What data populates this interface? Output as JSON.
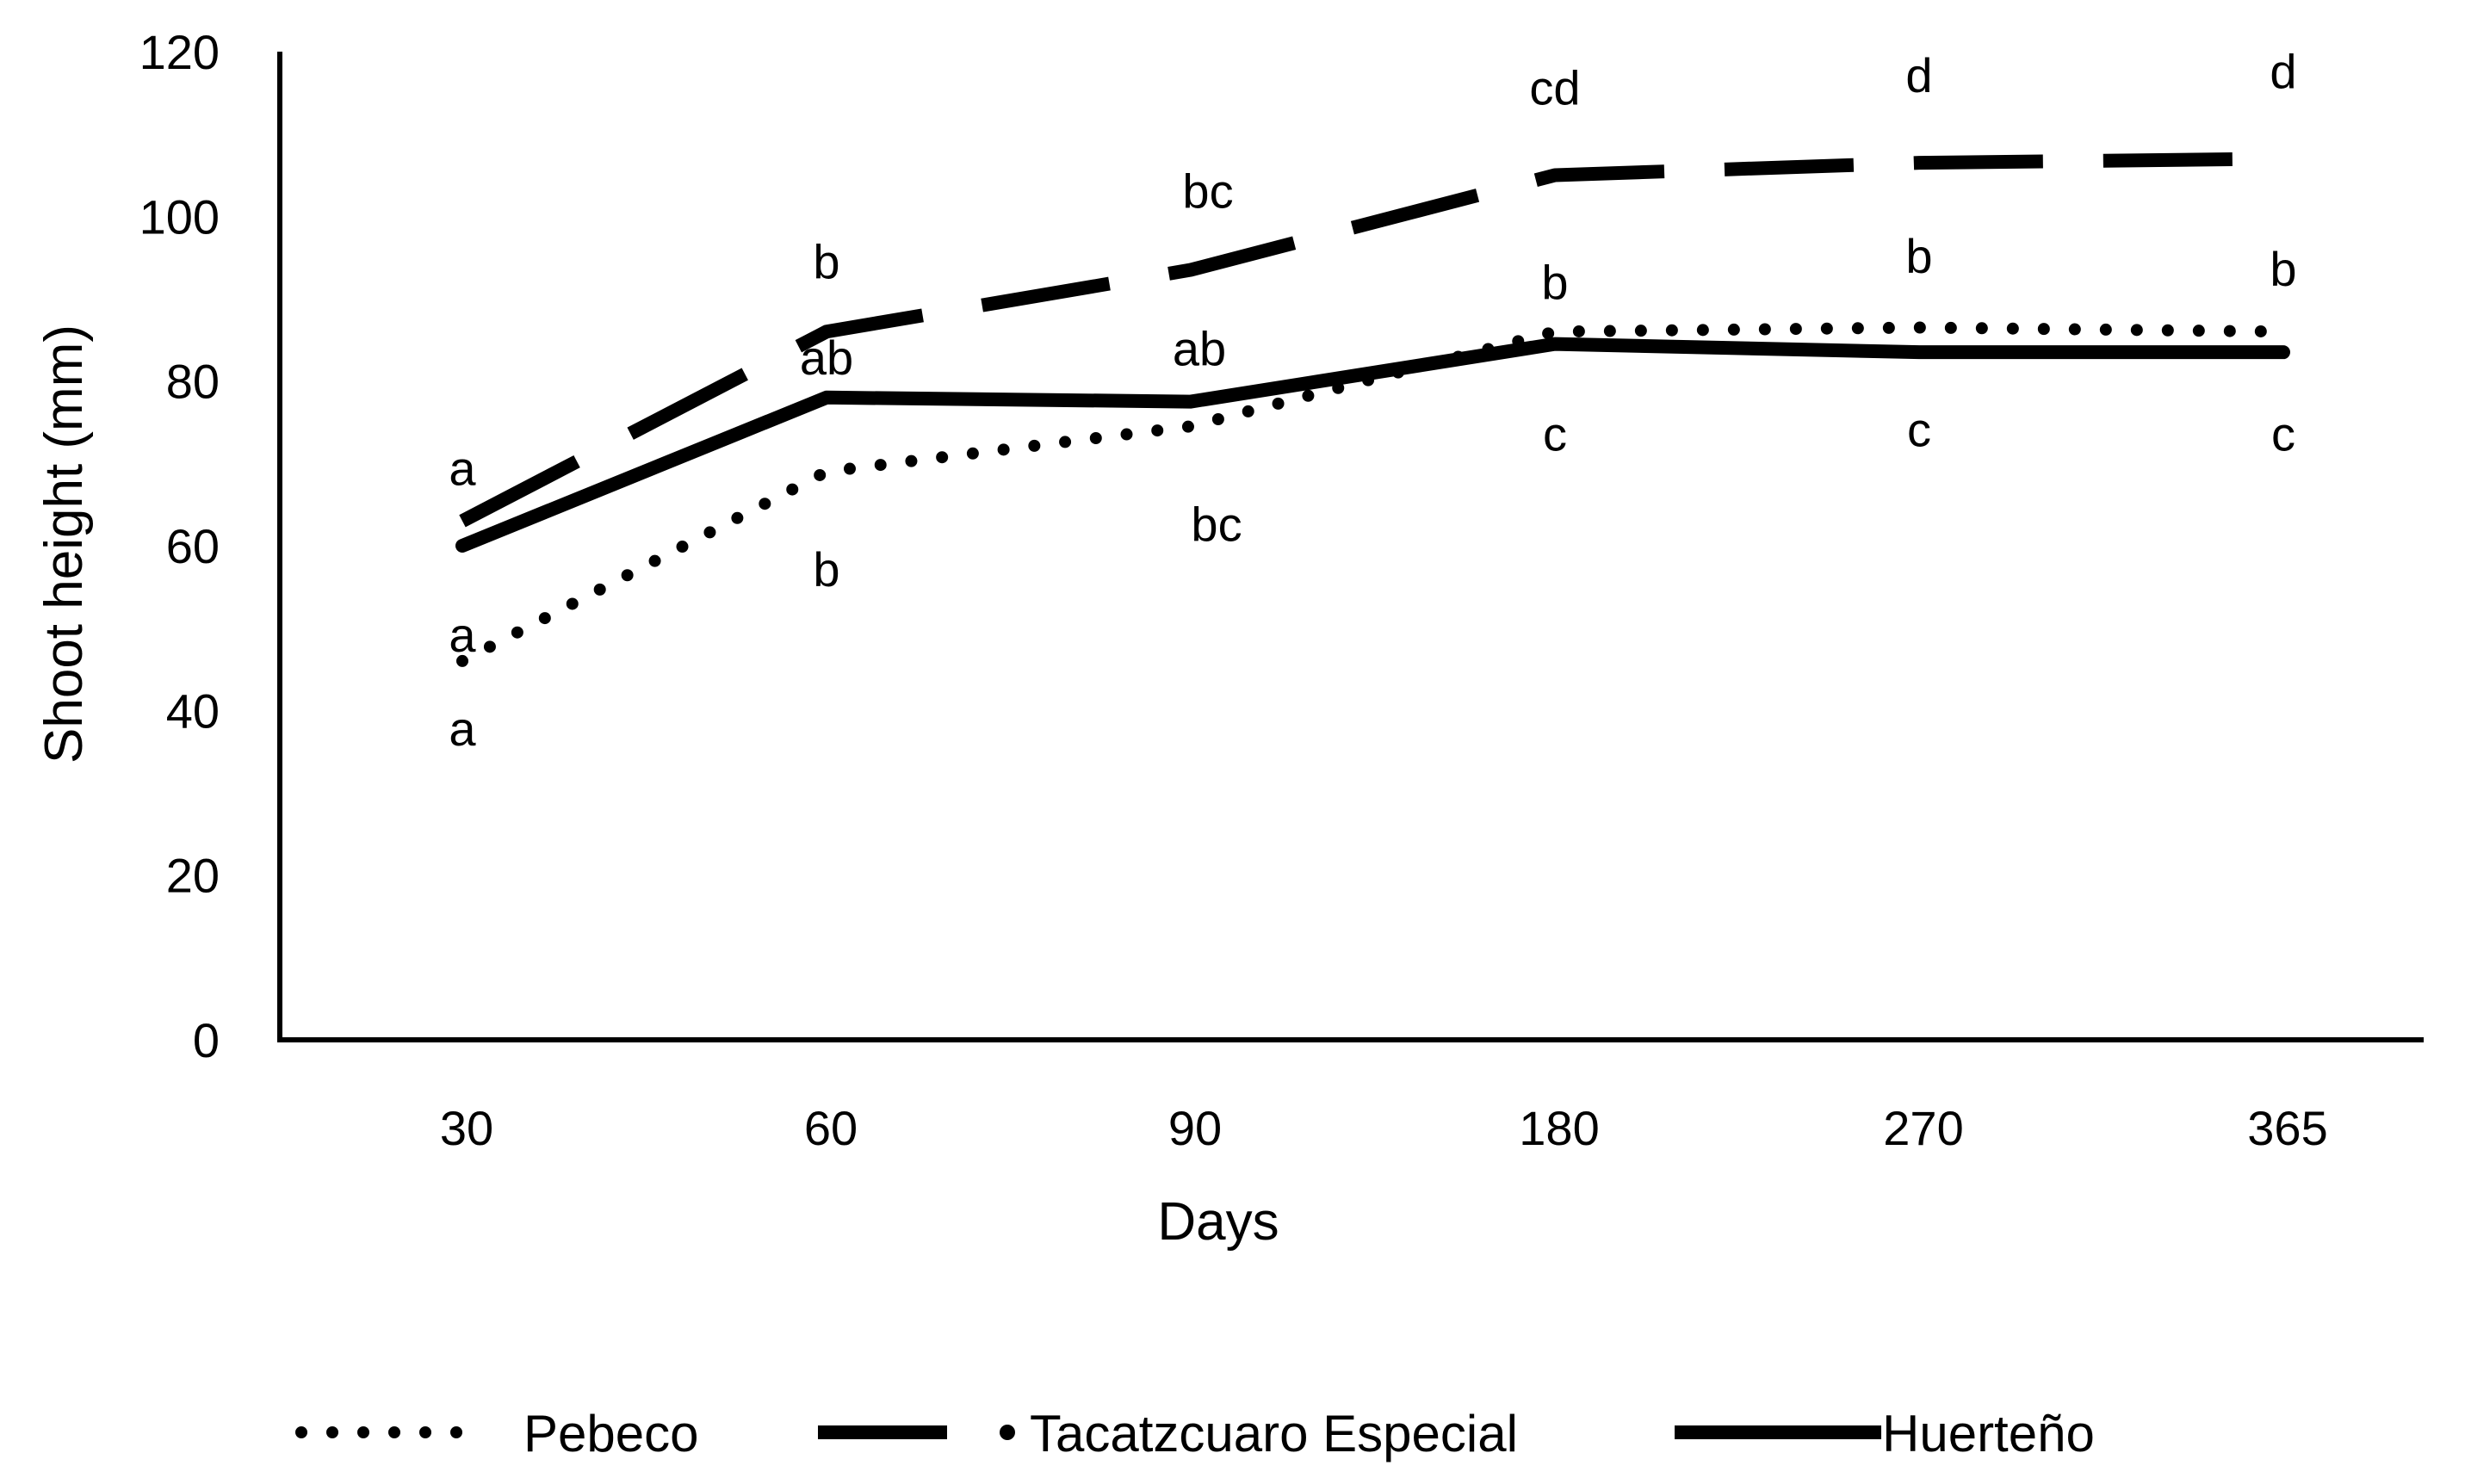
{
  "chart_data": {
    "type": "line",
    "title": "",
    "xlabel": "Days",
    "ylabel": "Shoot height (mm)",
    "categories": [
      "30",
      "60",
      "90",
      "180",
      "270",
      "365"
    ],
    "ylim": [
      0,
      120
    ],
    "yticks": [
      "0",
      "20",
      "40",
      "60",
      "80",
      "100",
      "120"
    ],
    "grid": false,
    "legend_position": "bottom",
    "series": [
      {
        "name": "Pebeco",
        "style": "dotted",
        "values": [
          46,
          69,
          74.5,
          86,
          86.5,
          86
        ],
        "labels": [
          "a",
          "b",
          "bc",
          "c",
          "c",
          "c"
        ]
      },
      {
        "name": "Tacatzcuaro Especial",
        "style": "dashed",
        "values": [
          63,
          86,
          93.5,
          105,
          106.5,
          107
        ],
        "labels": [
          "a",
          "b",
          "bc",
          "cd",
          "d",
          "d"
        ]
      },
      {
        "name": "Huerteño",
        "style": "solid",
        "values": [
          60,
          78,
          77.5,
          84.5,
          83.5,
          83.5
        ],
        "labels": [
          "a",
          "ab",
          "ab",
          "b",
          "b",
          "b"
        ]
      }
    ]
  },
  "colors": {
    "line": "#000000",
    "background": "#ffffff"
  }
}
